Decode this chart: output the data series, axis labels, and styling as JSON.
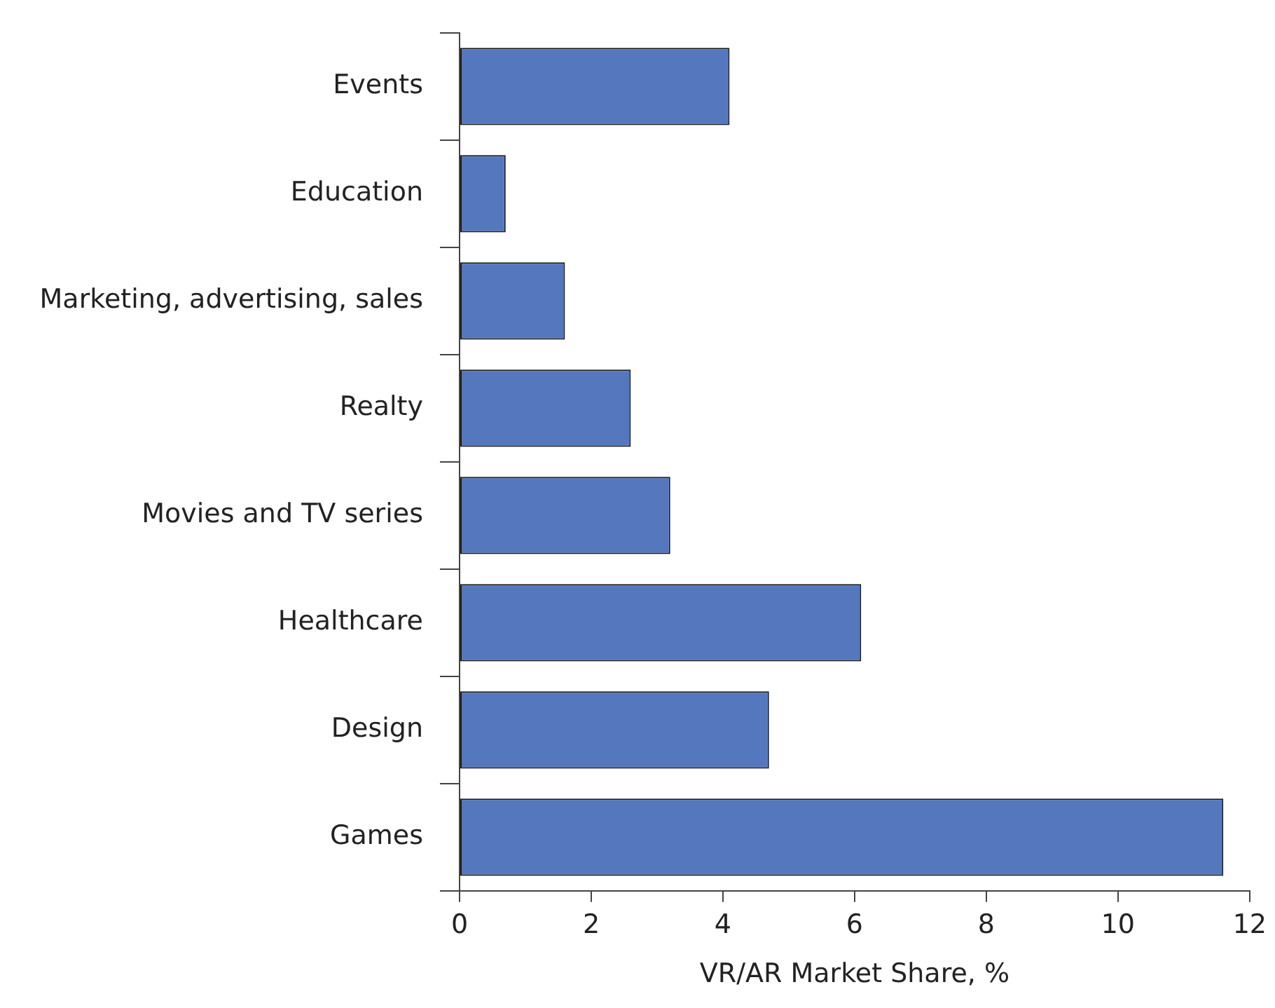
{
  "chart_data": {
    "type": "bar",
    "orientation": "horizontal",
    "xlabel": "VR/AR Market Share, %",
    "categories": [
      "Events",
      "Education",
      "Marketing, advertising, sales",
      "Realty",
      "Movies and TV series",
      "Healthcare",
      "Design",
      "Games"
    ],
    "values": [
      4.1,
      0.7,
      1.6,
      2.6,
      3.2,
      6.1,
      4.7,
      11.6
    ],
    "color": "#5577be",
    "xlim": [
      0,
      12
    ],
    "xticks": [
      0,
      2,
      4,
      6,
      8,
      10,
      12
    ],
    "grid": false,
    "legend": false
  }
}
